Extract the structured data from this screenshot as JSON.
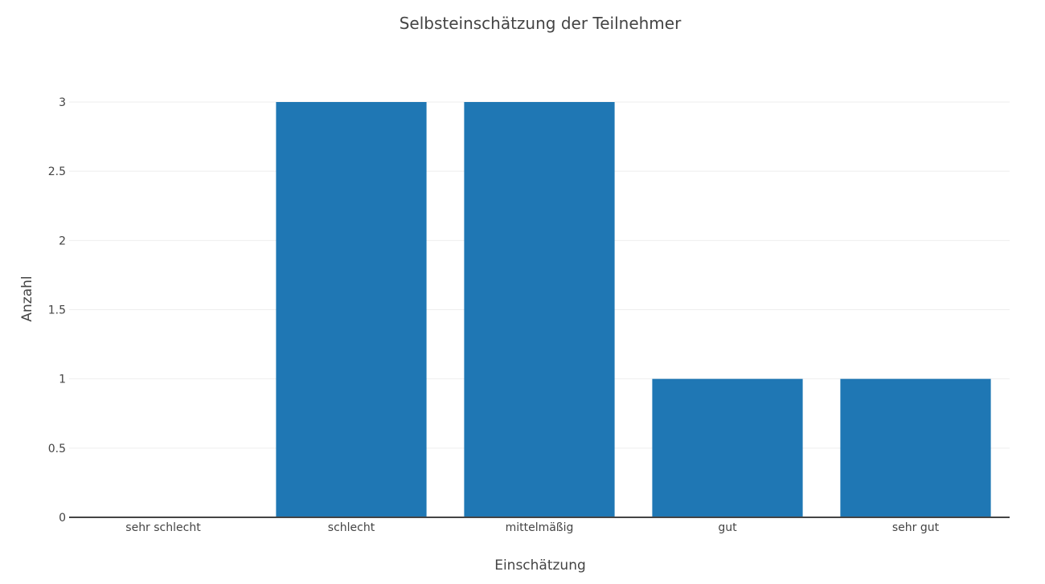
{
  "chart_data": {
    "type": "bar",
    "title": "Selbsteinschätzung der Teilnehmer",
    "xlabel": "Einschätzung",
    "ylabel": "Anzahl",
    "categories": [
      "sehr schlecht",
      "schlecht",
      "mittelmäßig",
      "gut",
      "sehr gut"
    ],
    "values": [
      0,
      3,
      3,
      1,
      1
    ],
    "ylim": [
      0,
      3
    ],
    "yticks": [
      "0",
      "0.5",
      "1",
      "1.5",
      "2",
      "2.5",
      "3"
    ],
    "grid": true,
    "legend": "none",
    "bar_color": "#1f77b4"
  }
}
